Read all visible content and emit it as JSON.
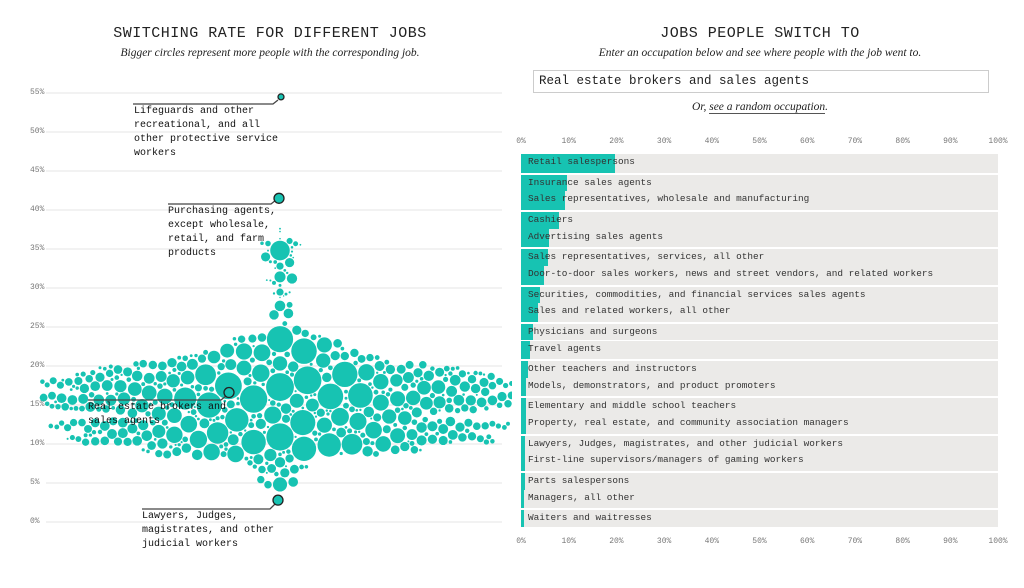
{
  "left": {
    "title": "SWITCHING RATE FOR DIFFERENT JOBS",
    "subtitle": "Bigger circles represent more people with the corresponding job."
  },
  "right": {
    "title": "JOBS PEOPLE SWITCH TO",
    "subtitle": "Enter an occupation below and see where people with the job went to.",
    "search_value": "Real estate brokers and sales agents",
    "random_prefix": "Or, ",
    "random_link": "see a random occupation",
    "random_suffix": "."
  },
  "colors": {
    "accent": "#17c3b2",
    "track": "#ebeae8",
    "grid": "#e6e6e6"
  },
  "chart_data": [
    {
      "type": "scatter",
      "subtype": "beeswarm",
      "title": "SWITCHING RATE FOR DIFFERENT JOBS",
      "subtitle": "Bigger circles represent more people with the corresponding job.",
      "ylim": [
        0,
        55
      ],
      "yticks": [
        "0%",
        "5%",
        "10%",
        "15%",
        "20%",
        "25%",
        "30%",
        "35%",
        "40%",
        "45%",
        "50%",
        "55%"
      ],
      "grid": true,
      "highlighted": [
        {
          "label": "Lifeguards and other recreational, and all other protective service workers",
          "rate": 54.5
        },
        {
          "label": "Purchasing agents, except wholesale, retail, and farm products",
          "rate": 41.5
        },
        {
          "label": "Real estate brokers and sales agents",
          "rate": 16.6
        },
        {
          "label": "Lawyers, Judges, magistrates, and other judicial workers",
          "rate": 2.8
        }
      ]
    },
    {
      "type": "bar",
      "orientation": "horizontal",
      "title": "JOBS PEOPLE SWITCH TO",
      "xlim": [
        0,
        100
      ],
      "xticks": [
        "0%",
        "10%",
        "20%",
        "30%",
        "40%",
        "50%",
        "60%",
        "70%",
        "80%",
        "90%",
        "100%"
      ],
      "categories": [
        "Retail salespersons",
        "Insurance sales agents",
        "Sales representatives, wholesale and manufacturing",
        "Cashiers",
        "Advertising sales agents",
        "Sales representatives, services, all other",
        "Door-to-door sales workers, news and street vendors, and related workers",
        "Securities, commodities, and financial services sales agents",
        "Sales and related workers, all other",
        "Physicians and surgeons",
        "Travel agents",
        "Other teachers and instructors",
        "Models, demonstrators, and product promoters",
        "Elementary and middle school teachers",
        "Property, real estate, and community association managers",
        "Lawyers, Judges, magistrates, and other judicial workers",
        "First-line supervisors/managers of gaming workers",
        "Parts salespersons",
        "Managers, all other",
        "Waiters and waitresses"
      ],
      "values": [
        19.7,
        9.6,
        9.2,
        8.0,
        5.9,
        5.7,
        4.8,
        4.0,
        3.6,
        2.5,
        1.9,
        1.5,
        1.1,
        1.0,
        1.0,
        0.9,
        0.8,
        0.8,
        0.7,
        0.7
      ]
    }
  ]
}
